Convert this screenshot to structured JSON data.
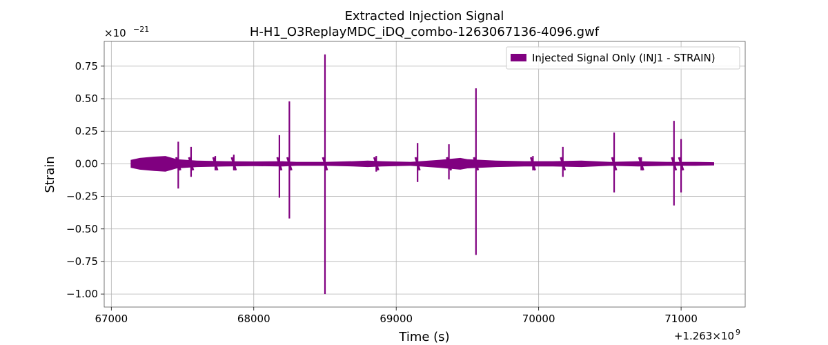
{
  "chart_data": {
    "type": "line",
    "title": "Extracted Injection Signal",
    "subtitle": "H-H1_O3ReplayMDC_iDQ_combo-1263067136-4096.gwf",
    "xlabel": "Time (s)",
    "ylabel": "Strain",
    "x_offset_label": "+1.263×10",
    "x_offset_exponent": "9",
    "y_scale_label": "×10",
    "y_scale_exponent": "−21",
    "xlim": [
      66950,
      71450
    ],
    "ylim": [
      -1.1,
      0.94
    ],
    "xticks": [
      67000,
      68000,
      69000,
      70000,
      71000
    ],
    "xtick_labels": [
      "67000",
      "68000",
      "69000",
      "70000",
      "71000"
    ],
    "yticks": [
      0.75,
      0.5,
      0.25,
      0.0,
      -0.25,
      -0.5,
      -0.75,
      -1.0
    ],
    "ytick_labels": [
      "0.75",
      "0.50",
      "0.25",
      "0.00",
      "−0.25",
      "−0.50",
      "−0.75",
      "−1.00"
    ],
    "grid": true,
    "legend_position": "top-right",
    "series": [
      {
        "name": "Injected Signal Only (INJ1 - STRAIN)",
        "color": "#800080",
        "x_range": [
          67136,
          71232
        ],
        "background_band": {
          "envelope": [
            [
              67136,
              0.03
            ],
            [
              67200,
              0.045
            ],
            [
              67300,
              0.055
            ],
            [
              67380,
              0.06
            ],
            [
              67460,
              0.035
            ],
            [
              67600,
              0.025
            ],
            [
              67800,
              0.02
            ],
            [
              68000,
              0.018
            ],
            [
              68200,
              0.02
            ],
            [
              68300,
              0.015
            ],
            [
              68500,
              0.015
            ],
            [
              68700,
              0.02
            ],
            [
              68800,
              0.025
            ],
            [
              68900,
              0.02
            ],
            [
              69100,
              0.015
            ],
            [
              69300,
              0.03
            ],
            [
              69450,
              0.045
            ],
            [
              69500,
              0.035
            ],
            [
              69700,
              0.025
            ],
            [
              69900,
              0.02
            ],
            [
              70100,
              0.02
            ],
            [
              70300,
              0.025
            ],
            [
              70500,
              0.015
            ],
            [
              70700,
              0.02
            ],
            [
              70900,
              0.015
            ],
            [
              71100,
              0.015
            ],
            [
              71232,
              0.012
            ]
          ]
        },
        "events": [
          {
            "x": 67470,
            "max": 0.17,
            "min": -0.19
          },
          {
            "x": 67560,
            "max": 0.13,
            "min": -0.1
          },
          {
            "x": 67730,
            "max": 0.06,
            "min": -0.05
          },
          {
            "x": 67860,
            "max": 0.07,
            "min": -0.05
          },
          {
            "x": 68180,
            "max": 0.22,
            "min": -0.26
          },
          {
            "x": 68250,
            "max": 0.48,
            "min": -0.42
          },
          {
            "x": 68500,
            "max": 0.84,
            "min": -1.0
          },
          {
            "x": 68860,
            "max": 0.06,
            "min": -0.06
          },
          {
            "x": 69150,
            "max": 0.16,
            "min": -0.14
          },
          {
            "x": 69370,
            "max": 0.15,
            "min": -0.12
          },
          {
            "x": 69560,
            "max": 0.58,
            "min": -0.7
          },
          {
            "x": 69960,
            "max": 0.06,
            "min": -0.05
          },
          {
            "x": 70170,
            "max": 0.13,
            "min": -0.1
          },
          {
            "x": 70530,
            "max": 0.24,
            "min": -0.22
          },
          {
            "x": 70720,
            "max": 0.05,
            "min": -0.05
          },
          {
            "x": 70950,
            "max": 0.33,
            "min": -0.32
          },
          {
            "x": 71000,
            "max": 0.19,
            "min": -0.22
          }
        ]
      }
    ]
  }
}
